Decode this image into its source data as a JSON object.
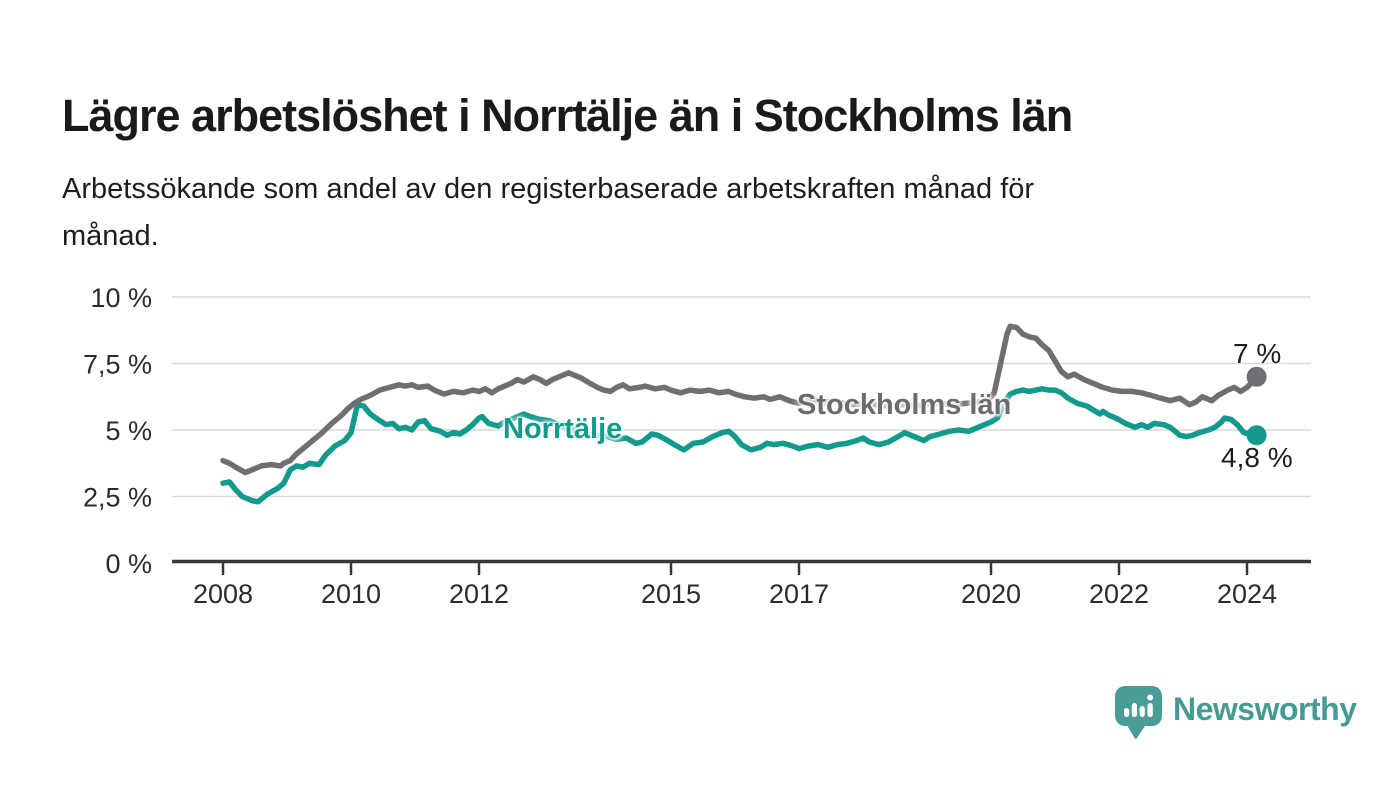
{
  "header": {
    "title": "Lägre arbetslöshet i Norrtälje än i Stockholms län",
    "subtitle_lines": [
      "Arbetssökande som andel av den registerbaserade arbetskraften månad för",
      "månad."
    ]
  },
  "chart_data": {
    "type": "line",
    "unit": "%",
    "x_axis": {
      "ticks": [
        2008,
        2010,
        2012,
        2015,
        2017,
        2020,
        2022,
        2024
      ],
      "range": [
        2007.2,
        2025.4
      ]
    },
    "y_axis": {
      "gridlines": [
        0,
        2.5,
        5,
        7.5,
        10
      ],
      "labels": [
        "0 %",
        "2,5 %",
        "5 %",
        "7,5 %",
        "10 %"
      ],
      "range": [
        0,
        10
      ],
      "grid": true
    },
    "colors": {
      "norrtalje": "#129a8c",
      "stockholms_lan": "#6f6f73",
      "gridline": "#d9d9d9",
      "axis": "#383838"
    },
    "series": [
      {
        "id": "norrtalje",
        "name": "Norrtälje",
        "color": "#129a8c",
        "end_label": "4,8 %",
        "end_value": 4.8,
        "points": [
          [
            2008.0,
            3.0
          ],
          [
            2008.1,
            3.05
          ],
          [
            2008.2,
            2.75
          ],
          [
            2008.3,
            2.5
          ],
          [
            2008.45,
            2.35
          ],
          [
            2008.55,
            2.3
          ],
          [
            2008.7,
            2.6
          ],
          [
            2008.85,
            2.8
          ],
          [
            2008.95,
            3.0
          ],
          [
            2009.05,
            3.5
          ],
          [
            2009.15,
            3.65
          ],
          [
            2009.25,
            3.6
          ],
          [
            2009.35,
            3.75
          ],
          [
            2009.5,
            3.7
          ],
          [
            2009.6,
            4.05
          ],
          [
            2009.75,
            4.4
          ],
          [
            2009.9,
            4.6
          ],
          [
            2010.0,
            4.9
          ],
          [
            2010.1,
            5.95
          ],
          [
            2010.2,
            5.9
          ],
          [
            2010.3,
            5.6
          ],
          [
            2010.45,
            5.35
          ],
          [
            2010.55,
            5.2
          ],
          [
            2010.65,
            5.25
          ],
          [
            2010.75,
            5.05
          ],
          [
            2010.85,
            5.1
          ],
          [
            2010.95,
            5.0
          ],
          [
            2011.05,
            5.3
          ],
          [
            2011.15,
            5.35
          ],
          [
            2011.25,
            5.05
          ],
          [
            2011.4,
            4.95
          ],
          [
            2011.5,
            4.8
          ],
          [
            2011.6,
            4.9
          ],
          [
            2011.7,
            4.85
          ],
          [
            2011.8,
            5.0
          ],
          [
            2011.9,
            5.2
          ],
          [
            2012.0,
            5.45
          ],
          [
            2012.05,
            5.5
          ],
          [
            2012.15,
            5.25
          ],
          [
            2012.3,
            5.15
          ],
          [
            2012.4,
            5.3
          ],
          [
            2012.55,
            5.45
          ],
          [
            2012.7,
            5.6
          ],
          [
            2012.8,
            5.5
          ],
          [
            2012.95,
            5.4
          ],
          [
            2013.1,
            5.35
          ],
          [
            2013.25,
            5.2
          ],
          [
            2013.4,
            5.05
          ],
          [
            2013.55,
            4.95
          ],
          [
            2013.7,
            4.85
          ],
          [
            2013.85,
            4.8
          ],
          [
            2014.0,
            4.75
          ],
          [
            2014.15,
            4.65
          ],
          [
            2014.3,
            4.7
          ],
          [
            2014.45,
            4.5
          ],
          [
            2014.55,
            4.55
          ],
          [
            2014.7,
            4.85
          ],
          [
            2014.8,
            4.8
          ],
          [
            2014.95,
            4.6
          ],
          [
            2015.05,
            4.45
          ],
          [
            2015.2,
            4.25
          ],
          [
            2015.35,
            4.5
          ],
          [
            2015.5,
            4.55
          ],
          [
            2015.65,
            4.75
          ],
          [
            2015.8,
            4.9
          ],
          [
            2015.9,
            4.95
          ],
          [
            2016.0,
            4.75
          ],
          [
            2016.1,
            4.45
          ],
          [
            2016.25,
            4.25
          ],
          [
            2016.4,
            4.35
          ],
          [
            2016.5,
            4.5
          ],
          [
            2016.6,
            4.45
          ],
          [
            2016.75,
            4.5
          ],
          [
            2016.9,
            4.4
          ],
          [
            2017.0,
            4.3
          ],
          [
            2017.15,
            4.4
          ],
          [
            2017.3,
            4.45
          ],
          [
            2017.45,
            4.35
          ],
          [
            2017.6,
            4.45
          ],
          [
            2017.75,
            4.5
          ],
          [
            2017.9,
            4.6
          ],
          [
            2018.0,
            4.7
          ],
          [
            2018.1,
            4.55
          ],
          [
            2018.25,
            4.45
          ],
          [
            2018.4,
            4.55
          ],
          [
            2018.55,
            4.75
          ],
          [
            2018.65,
            4.9
          ],
          [
            2018.8,
            4.75
          ],
          [
            2018.95,
            4.6
          ],
          [
            2019.05,
            4.75
          ],
          [
            2019.2,
            4.85
          ],
          [
            2019.35,
            4.95
          ],
          [
            2019.5,
            5.0
          ],
          [
            2019.65,
            4.95
          ],
          [
            2019.8,
            5.1
          ],
          [
            2019.9,
            5.2
          ],
          [
            2020.0,
            5.3
          ],
          [
            2020.1,
            5.45
          ],
          [
            2020.2,
            6.0
          ],
          [
            2020.3,
            6.35
          ],
          [
            2020.4,
            6.45
          ],
          [
            2020.5,
            6.5
          ],
          [
            2020.6,
            6.45
          ],
          [
            2020.7,
            6.5
          ],
          [
            2020.8,
            6.55
          ],
          [
            2020.9,
            6.5
          ],
          [
            2021.0,
            6.5
          ],
          [
            2021.1,
            6.4
          ],
          [
            2021.2,
            6.2
          ],
          [
            2021.35,
            6.0
          ],
          [
            2021.5,
            5.9
          ],
          [
            2021.6,
            5.75
          ],
          [
            2021.7,
            5.6
          ],
          [
            2021.75,
            5.7
          ],
          [
            2021.85,
            5.55
          ],
          [
            2021.95,
            5.45
          ],
          [
            2022.1,
            5.25
          ],
          [
            2022.25,
            5.1
          ],
          [
            2022.35,
            5.2
          ],
          [
            2022.45,
            5.1
          ],
          [
            2022.55,
            5.25
          ],
          [
            2022.7,
            5.2
          ],
          [
            2022.8,
            5.1
          ],
          [
            2022.95,
            4.8
          ],
          [
            2023.05,
            4.75
          ],
          [
            2023.15,
            4.8
          ],
          [
            2023.25,
            4.9
          ],
          [
            2023.4,
            5.0
          ],
          [
            2023.5,
            5.1
          ],
          [
            2023.6,
            5.3
          ],
          [
            2023.65,
            5.45
          ],
          [
            2023.75,
            5.4
          ],
          [
            2023.85,
            5.2
          ],
          [
            2023.95,
            4.9
          ],
          [
            2024.05,
            4.85
          ],
          [
            2024.15,
            4.8
          ]
        ]
      },
      {
        "id": "stockholms-lan",
        "name": "Stockholms län",
        "color": "#6f6f73",
        "end_label": "7 %",
        "end_value": 7.0,
        "points": [
          [
            2008.0,
            3.85
          ],
          [
            2008.1,
            3.75
          ],
          [
            2008.2,
            3.6
          ],
          [
            2008.35,
            3.4
          ],
          [
            2008.5,
            3.55
          ],
          [
            2008.6,
            3.65
          ],
          [
            2008.75,
            3.7
          ],
          [
            2008.9,
            3.65
          ],
          [
            2008.95,
            3.75
          ],
          [
            2009.05,
            3.85
          ],
          [
            2009.15,
            4.1
          ],
          [
            2009.25,
            4.3
          ],
          [
            2009.4,
            4.6
          ],
          [
            2009.55,
            4.9
          ],
          [
            2009.7,
            5.25
          ],
          [
            2009.85,
            5.55
          ],
          [
            2009.95,
            5.8
          ],
          [
            2010.05,
            6.0
          ],
          [
            2010.15,
            6.15
          ],
          [
            2010.3,
            6.3
          ],
          [
            2010.45,
            6.5
          ],
          [
            2010.6,
            6.6
          ],
          [
            2010.75,
            6.7
          ],
          [
            2010.85,
            6.65
          ],
          [
            2010.95,
            6.7
          ],
          [
            2011.05,
            6.6
          ],
          [
            2011.2,
            6.65
          ],
          [
            2011.3,
            6.5
          ],
          [
            2011.45,
            6.35
          ],
          [
            2011.6,
            6.45
          ],
          [
            2011.75,
            6.4
          ],
          [
            2011.9,
            6.5
          ],
          [
            2012.0,
            6.45
          ],
          [
            2012.1,
            6.55
          ],
          [
            2012.2,
            6.4
          ],
          [
            2012.3,
            6.55
          ],
          [
            2012.4,
            6.65
          ],
          [
            2012.5,
            6.75
          ],
          [
            2012.6,
            6.9
          ],
          [
            2012.7,
            6.8
          ],
          [
            2012.85,
            7.0
          ],
          [
            2012.95,
            6.9
          ],
          [
            2013.05,
            6.75
          ],
          [
            2013.15,
            6.9
          ],
          [
            2013.3,
            7.05
          ],
          [
            2013.4,
            7.15
          ],
          [
            2013.5,
            7.05
          ],
          [
            2013.6,
            6.95
          ],
          [
            2013.7,
            6.8
          ],
          [
            2013.85,
            6.6
          ],
          [
            2013.95,
            6.5
          ],
          [
            2014.05,
            6.45
          ],
          [
            2014.15,
            6.6
          ],
          [
            2014.25,
            6.7
          ],
          [
            2014.35,
            6.55
          ],
          [
            2014.5,
            6.6
          ],
          [
            2014.6,
            6.65
          ],
          [
            2014.75,
            6.55
          ],
          [
            2014.9,
            6.6
          ],
          [
            2015.0,
            6.5
          ],
          [
            2015.15,
            6.4
          ],
          [
            2015.3,
            6.5
          ],
          [
            2015.45,
            6.45
          ],
          [
            2015.6,
            6.5
          ],
          [
            2015.75,
            6.4
          ],
          [
            2015.9,
            6.45
          ],
          [
            2016.0,
            6.35
          ],
          [
            2016.15,
            6.25
          ],
          [
            2016.3,
            6.2
          ],
          [
            2016.45,
            6.25
          ],
          [
            2016.55,
            6.15
          ],
          [
            2016.7,
            6.25
          ],
          [
            2016.85,
            6.1
          ],
          [
            2017.0,
            6.0
          ],
          [
            2017.1,
            6.1
          ],
          [
            2017.25,
            6.15
          ],
          [
            2017.4,
            6.05
          ],
          [
            2017.55,
            6.1
          ],
          [
            2017.7,
            6.0
          ],
          [
            2017.85,
            5.95
          ],
          [
            2018.0,
            6.0
          ],
          [
            2018.2,
            5.95
          ],
          [
            2018.4,
            5.9
          ],
          [
            2018.6,
            5.95
          ],
          [
            2018.8,
            5.9
          ],
          [
            2019.0,
            5.95
          ],
          [
            2019.2,
            6.0
          ],
          [
            2019.4,
            5.95
          ],
          [
            2019.6,
            6.0
          ],
          [
            2019.8,
            6.05
          ],
          [
            2019.95,
            6.1
          ],
          [
            2020.05,
            6.4
          ],
          [
            2020.15,
            7.5
          ],
          [
            2020.25,
            8.6
          ],
          [
            2020.3,
            8.9
          ],
          [
            2020.4,
            8.85
          ],
          [
            2020.5,
            8.6
          ],
          [
            2020.6,
            8.5
          ],
          [
            2020.7,
            8.45
          ],
          [
            2020.8,
            8.2
          ],
          [
            2020.9,
            8.0
          ],
          [
            2021.0,
            7.6
          ],
          [
            2021.1,
            7.2
          ],
          [
            2021.2,
            7.0
          ],
          [
            2021.3,
            7.1
          ],
          [
            2021.45,
            6.9
          ],
          [
            2021.6,
            6.75
          ],
          [
            2021.75,
            6.6
          ],
          [
            2021.9,
            6.5
          ],
          [
            2022.05,
            6.45
          ],
          [
            2022.2,
            6.45
          ],
          [
            2022.35,
            6.4
          ],
          [
            2022.5,
            6.3
          ],
          [
            2022.65,
            6.2
          ],
          [
            2022.8,
            6.1
          ],
          [
            2022.95,
            6.2
          ],
          [
            2023.1,
            5.95
          ],
          [
            2023.2,
            6.05
          ],
          [
            2023.3,
            6.25
          ],
          [
            2023.45,
            6.1
          ],
          [
            2023.55,
            6.3
          ],
          [
            2023.7,
            6.5
          ],
          [
            2023.8,
            6.6
          ],
          [
            2023.9,
            6.45
          ],
          [
            2024.0,
            6.6
          ],
          [
            2024.1,
            6.85
          ],
          [
            2024.15,
            7.0
          ]
        ]
      }
    ]
  },
  "branding": {
    "wordmark": "Newsworthy",
    "logo_color": "#4a9d96",
    "logo_icon": "bar-chart-speech-bubble"
  }
}
